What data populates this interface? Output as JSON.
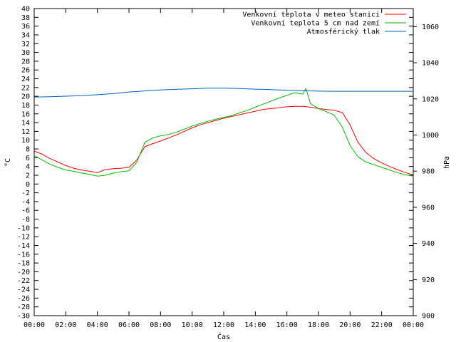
{
  "chart_data": {
    "type": "line",
    "xlabel": "Čas",
    "ylabel": "°C",
    "y2label": "hPa",
    "grid": false,
    "legend_position": "top-right",
    "x_ticks": [
      "00:00",
      "02:00",
      "04:00",
      "06:00",
      "08:00",
      "10:00",
      "12:00",
      "14:00",
      "16:00",
      "18:00",
      "20:00",
      "22:00",
      "00:00"
    ],
    "x_tick_hours": [
      0,
      2,
      4,
      6,
      8,
      10,
      12,
      14,
      16,
      18,
      20,
      22,
      24
    ],
    "xlim": [
      0,
      24
    ],
    "ylim": [
      -30,
      40
    ],
    "y_ticks": [
      -30,
      -28,
      -26,
      -24,
      -22,
      -20,
      -18,
      -16,
      -14,
      -12,
      -10,
      -8,
      -6,
      -4,
      -2,
      0,
      2,
      4,
      6,
      8,
      10,
      12,
      14,
      16,
      18,
      20,
      22,
      24,
      26,
      28,
      30,
      32,
      34,
      36,
      38,
      40
    ],
    "y2lim": [
      900,
      1070
    ],
    "y2_ticks": [
      900,
      920,
      940,
      960,
      980,
      1000,
      1020,
      1040,
      1060
    ],
    "series": [
      {
        "name": "Venkovní teplota v meteo stanici",
        "axis": "left",
        "color": "#ff0000",
        "x": [
          0,
          0.5,
          1,
          1.5,
          2,
          2.5,
          3,
          3.5,
          4,
          4.5,
          5,
          5.5,
          6,
          6.5,
          7,
          7.5,
          8,
          8.5,
          9,
          9.5,
          10,
          10.5,
          11,
          11.5,
          12,
          12.5,
          13,
          13.5,
          14,
          14.5,
          15,
          15.5,
          16,
          16.5,
          17,
          17.5,
          18,
          18.5,
          19,
          19.5,
          20,
          20.5,
          21,
          21.5,
          22,
          22.5,
          23,
          23.5,
          24
        ],
        "values": [
          7.5,
          6.8,
          5.8,
          5,
          4.2,
          3.6,
          3.2,
          2.9,
          2.6,
          3.3,
          3.5,
          3.6,
          3.8,
          5.5,
          8.5,
          9.2,
          9.8,
          10.5,
          11.2,
          12,
          12.8,
          13.5,
          14,
          14.5,
          15,
          15.4,
          15.8,
          16.2,
          16.6,
          17,
          17.2,
          17.4,
          17.6,
          17.7,
          17.7,
          17.5,
          17.2,
          17,
          16.8,
          16.3,
          13.5,
          9.5,
          7.2,
          5.8,
          4.8,
          4,
          3.3,
          2.6,
          2.1
        ]
      },
      {
        "name": "Venkovní teplota 5 cm nad zemí",
        "axis": "left",
        "color": "#00c000",
        "x": [
          0,
          0.5,
          1,
          1.5,
          2,
          2.5,
          3,
          3.5,
          4,
          4.5,
          5,
          5.5,
          6,
          6.5,
          7,
          7.5,
          8,
          8.5,
          9,
          9.5,
          10,
          10.5,
          11,
          11.5,
          12,
          12.5,
          13,
          13.5,
          14,
          14.5,
          15,
          15.5,
          16,
          16.5,
          17,
          17.2,
          17.5,
          18,
          18.5,
          19,
          19.5,
          20,
          20.5,
          21,
          21.5,
          22,
          22.5,
          23,
          23.5,
          24
        ],
        "values": [
          6.5,
          5.5,
          4.5,
          3.8,
          3.2,
          2.9,
          2.5,
          2.2,
          1.8,
          2,
          2.5,
          2.8,
          3,
          5,
          9.5,
          10.5,
          11,
          11.3,
          11.8,
          12.5,
          13.2,
          13.8,
          14.3,
          14.8,
          15.2,
          15.6,
          16.2,
          16.8,
          17.5,
          18.2,
          18.9,
          19.6,
          20.2,
          20.8,
          20.5,
          21.8,
          18.3,
          17.2,
          16.5,
          15.7,
          13,
          8.8,
          6.2,
          5,
          4.4,
          3.8,
          3.2,
          2.6,
          2.1,
          1.8
        ]
      },
      {
        "name": "Atmosférický tlak",
        "axis": "right",
        "color": "#0060c0",
        "x": [
          0,
          1,
          2,
          3,
          4,
          5,
          6,
          7,
          8,
          9,
          10,
          11,
          12,
          13,
          14,
          15,
          16,
          17,
          18,
          19,
          20,
          21,
          22,
          23,
          24
        ],
        "values": [
          1021,
          1021.2,
          1021.5,
          1021.8,
          1022.3,
          1022.9,
          1023.8,
          1024.4,
          1024.9,
          1025.3,
          1025.6,
          1025.9,
          1025.9,
          1025.7,
          1025.4,
          1025.1,
          1024.8,
          1024.5,
          1024.3,
          1024.2,
          1024.2,
          1024.2,
          1024.2,
          1024.2,
          1024.2
        ]
      }
    ]
  }
}
